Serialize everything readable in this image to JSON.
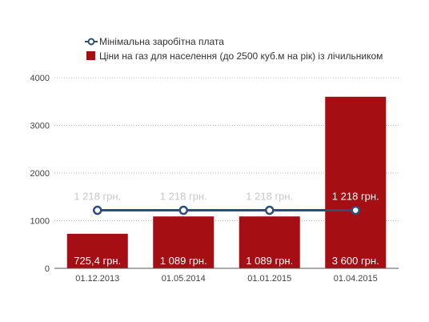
{
  "chart_data": {
    "type": "bar",
    "title": "",
    "xlabel": "",
    "ylabel": "",
    "ylim": [
      0,
      4000
    ],
    "yticks": [
      "0",
      "1000",
      "2000",
      "3000",
      "4000"
    ],
    "grid": "horizontal dotted",
    "legend_position": "top-left",
    "categories": [
      "01.12.2013",
      "01.05.2014",
      "01.01.2015",
      "01.04.2015"
    ],
    "series": [
      {
        "name": "Ціни на газ для населення (до 2500 куб.м на рік) із лічильником",
        "kind": "bar",
        "color": "#a50e12",
        "values": [
          725.4,
          1089,
          1089,
          3600
        ],
        "labels": [
          "725,4 грн.",
          "1 089 грн.",
          "1 089 грн.",
          "3 600 грн."
        ]
      },
      {
        "name": "Мінімальна  заробітна плата",
        "kind": "line",
        "color": "#2a4f7a",
        "values": [
          1218,
          1218,
          1218,
          1218
        ],
        "labels": [
          "1 218 грн.",
          "1 218 грн.",
          "1 218 грн.",
          "1 218 грн."
        ]
      }
    ]
  },
  "colors": {
    "bar": "#a50e12",
    "line": "#2a4f7a",
    "line_label_over_white": "#c8c8c8",
    "line_label_over_bar": "#ffffff",
    "grid": "#bbbbbb",
    "axis": "#555555"
  }
}
